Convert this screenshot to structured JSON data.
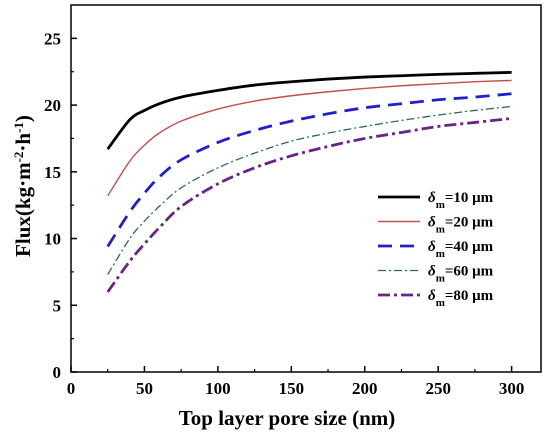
{
  "chart_data": {
    "type": "line",
    "xlabel": "Top layer pore size (nm)",
    "ylabel": "Flux(kg·m⁻²·h⁻¹)",
    "xlim": [
      0,
      320
    ],
    "ylim": [
      0,
      27.5
    ],
    "x_ticks": [
      0,
      50,
      100,
      150,
      200,
      250,
      300
    ],
    "y_ticks": [
      0,
      5,
      10,
      15,
      20,
      25
    ],
    "grid": false,
    "legend_position": "center-right",
    "x": [
      25,
      40,
      50,
      60,
      75,
      100,
      125,
      150,
      175,
      200,
      225,
      250,
      275,
      300
    ],
    "series": [
      {
        "name": "δm=10 μm",
        "legend_sym": "δ",
        "legend_sub": "m",
        "legend_rest": "=10 μm",
        "color": "#000000",
        "dash": "",
        "width": 2.8,
        "values": [
          16.7,
          18.9,
          19.6,
          20.1,
          20.6,
          21.1,
          21.5,
          21.75,
          21.95,
          22.1,
          22.2,
          22.3,
          22.38,
          22.45
        ]
      },
      {
        "name": "δm=20 μm",
        "legend_sym": "δ",
        "legend_sub": "m",
        "legend_rest": "=20 μm",
        "color": "#c0504d",
        "dash": "",
        "width": 1.4,
        "values": [
          13.2,
          15.8,
          17.0,
          17.9,
          18.8,
          19.7,
          20.3,
          20.7,
          21.0,
          21.25,
          21.45,
          21.6,
          21.75,
          21.85
        ]
      },
      {
        "name": "δm=40 μm",
        "legend_sym": "δ",
        "legend_sub": "m",
        "legend_rest": "=40 μm",
        "color": "#1f1fcc",
        "dash": "14,8",
        "width": 2.8,
        "values": [
          9.4,
          12.0,
          13.4,
          14.6,
          15.9,
          17.2,
          18.1,
          18.8,
          19.35,
          19.8,
          20.1,
          20.4,
          20.6,
          20.85
        ]
      },
      {
        "name": "δm=60 μm",
        "legend_sym": "δ",
        "legend_sub": "m",
        "legend_rest": "=60 μm",
        "color": "#2e6b4e",
        "dash": "8,3,2,3",
        "width": 1.3,
        "values": [
          7.3,
          10.0,
          11.3,
          12.4,
          13.8,
          15.3,
          16.4,
          17.3,
          17.9,
          18.4,
          18.85,
          19.25,
          19.6,
          19.9
        ]
      },
      {
        "name": "δm=80 μm",
        "legend_sym": "δ",
        "legend_sub": "m",
        "legend_rest": "=80 μm",
        "color": "#6a2484",
        "dash": "12,4,3,4",
        "width": 2.8,
        "values": [
          6.0,
          8.3,
          9.6,
          10.8,
          12.4,
          14.1,
          15.3,
          16.2,
          16.9,
          17.5,
          17.95,
          18.4,
          18.7,
          19.0
        ]
      }
    ]
  }
}
